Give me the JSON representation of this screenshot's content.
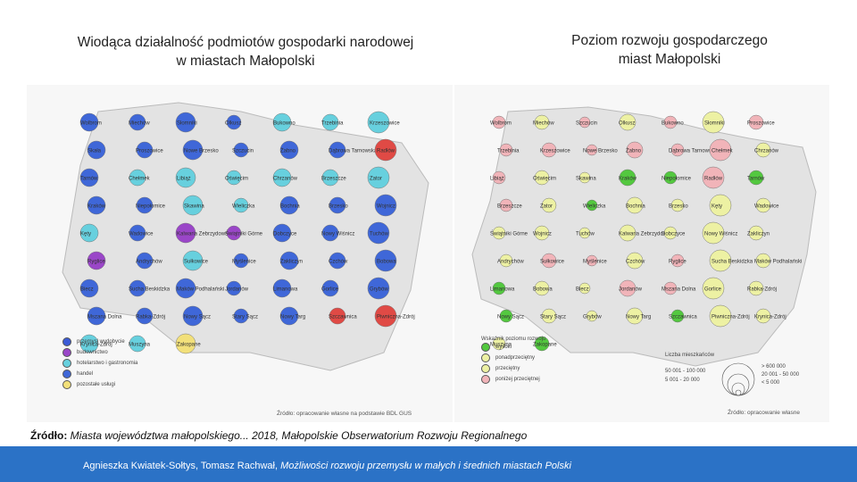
{
  "left_title": "Wiodąca działalność podmiotów gospodarki narodowej\nw miastach Małopolski",
  "right_title": "Poziom rozwoju gospodarczego\nmiast Małopolski",
  "colors": {
    "industry": "#3b5bd6",
    "construction": "#9a46c8",
    "hotel": "#67d0de",
    "trade": "#3f67d8",
    "services": "#f2e07a",
    "red": "#e04a45",
    "green": "#53c83f",
    "yellow": "#edf1a3",
    "pink": "#f1b4b9"
  },
  "left_map": {
    "legend": [
      "przemysł wydobycie",
      "budownictwo",
      "hotelarstwo i gastronomia",
      "handel",
      "pozostałe usługi"
    ],
    "source": "Źródło: opracowanie własne na podstawie BDL GUS",
    "cities": [
      {
        "name": "Wolbrom",
        "c": "trade"
      },
      {
        "name": "Miechów",
        "c": "trade"
      },
      {
        "name": "Słomniki",
        "c": "trade"
      },
      {
        "name": "Olkusz",
        "c": "trade"
      },
      {
        "name": "Bukowno",
        "c": "hotel"
      },
      {
        "name": "Trzebinia",
        "c": "hotel"
      },
      {
        "name": "Krzeszowice",
        "c": "hotel"
      },
      {
        "name": "Skała",
        "c": "trade"
      },
      {
        "name": "Proszowice",
        "c": "trade"
      },
      {
        "name": "Nowe Brzesko",
        "c": "trade"
      },
      {
        "name": "Szczucin",
        "c": "trade"
      },
      {
        "name": "Żabno",
        "c": "trade"
      },
      {
        "name": "Dąbrowa Tarnowska",
        "c": "trade"
      },
      {
        "name": "Radłów",
        "c": "red"
      },
      {
        "name": "Tarnów",
        "c": "trade"
      },
      {
        "name": "Chełmek",
        "c": "hotel"
      },
      {
        "name": "Libiąż",
        "c": "hotel"
      },
      {
        "name": "Oświęcim",
        "c": "hotel"
      },
      {
        "name": "Chrzanów",
        "c": "hotel"
      },
      {
        "name": "Brzeszcze",
        "c": "hotel"
      },
      {
        "name": "Zator",
        "c": "hotel"
      },
      {
        "name": "Kraków",
        "c": "trade"
      },
      {
        "name": "Niepołomice",
        "c": "trade"
      },
      {
        "name": "Skawina",
        "c": "hotel"
      },
      {
        "name": "Wieliczka",
        "c": "hotel"
      },
      {
        "name": "Bochnia",
        "c": "trade"
      },
      {
        "name": "Brzesko",
        "c": "trade"
      },
      {
        "name": "Wojnicz",
        "c": "trade"
      },
      {
        "name": "Kęty",
        "c": "hotel"
      },
      {
        "name": "Wadowice",
        "c": "trade"
      },
      {
        "name": "Kalwaria Zebrzydowska",
        "c": "construction"
      },
      {
        "name": "Świątniki Górne",
        "c": "construction"
      },
      {
        "name": "Dobczyce",
        "c": "trade"
      },
      {
        "name": "Nowy Wiśnicz",
        "c": "trade"
      },
      {
        "name": "Tuchów",
        "c": "trade"
      },
      {
        "name": "Ryglice",
        "c": "construction"
      },
      {
        "name": "Andrychów",
        "c": "trade"
      },
      {
        "name": "Sułkowice",
        "c": "hotel"
      },
      {
        "name": "Myślenice",
        "c": "trade"
      },
      {
        "name": "Zakliczyn",
        "c": "trade"
      },
      {
        "name": "Czchów",
        "c": "trade"
      },
      {
        "name": "Bobowa",
        "c": "trade"
      },
      {
        "name": "Biecz",
        "c": "trade"
      },
      {
        "name": "Sucha Beskidzka",
        "c": "trade"
      },
      {
        "name": "Maków Podhalański",
        "c": "trade"
      },
      {
        "name": "Jordanów",
        "c": "trade"
      },
      {
        "name": "Limanowa",
        "c": "trade"
      },
      {
        "name": "Gorlice",
        "c": "trade"
      },
      {
        "name": "Grybów",
        "c": "trade"
      },
      {
        "name": "Mszana Dolna",
        "c": "trade"
      },
      {
        "name": "Rabka-Zdrój",
        "c": "trade"
      },
      {
        "name": "Nowy Sącz",
        "c": "trade"
      },
      {
        "name": "Stary Sącz",
        "c": "trade"
      },
      {
        "name": "Nowy Targ",
        "c": "trade"
      },
      {
        "name": "Szczawnica",
        "c": "red"
      },
      {
        "name": "Piwniczna-Zdrój",
        "c": "red"
      },
      {
        "name": "Krynica-Zdrój",
        "c": "hotel"
      },
      {
        "name": "Muszyna",
        "c": "hotel"
      },
      {
        "name": "Zakopane",
        "c": "services"
      }
    ]
  },
  "right_map": {
    "legend_title": "Wskaźnik poziomu rozwoju",
    "legend": [
      "wysoki",
      "ponadprzeciętny",
      "przeciętny",
      "poniżej przeciętnej"
    ],
    "size_title": "Liczba mieszkańców",
    "sizes_left": [
      "50 001 - 100 000",
      "5 001 - 20 000"
    ],
    "sizes_right": [
      "> 600 000",
      "20 001 - 50 000",
      "< 5 000"
    ],
    "source": "Źródło: opracowanie własne",
    "cities": [
      {
        "name": "Wolbrom",
        "c": "pink"
      },
      {
        "name": "Miechów",
        "c": "yellow"
      },
      {
        "name": "Szczucin",
        "c": "pink"
      },
      {
        "name": "Olkusz",
        "c": "yellow"
      },
      {
        "name": "Bukowno",
        "c": "pink"
      },
      {
        "name": "Słomniki",
        "c": "yellow"
      },
      {
        "name": "Proszowice",
        "c": "pink"
      },
      {
        "name": "Trzebinia",
        "c": "pink"
      },
      {
        "name": "Krzeszowice",
        "c": "pink"
      },
      {
        "name": "Nowe Brzesko",
        "c": "pink"
      },
      {
        "name": "Żabno",
        "c": "pink"
      },
      {
        "name": "Dąbrowa Tarnowska",
        "c": "pink"
      },
      {
        "name": "Chełmek",
        "c": "pink"
      },
      {
        "name": "Chrzanów",
        "c": "yellow"
      },
      {
        "name": "Libiąż",
        "c": "pink"
      },
      {
        "name": "Oświęcim",
        "c": "yellow"
      },
      {
        "name": "Skawina",
        "c": "yellow"
      },
      {
        "name": "Kraków",
        "c": "green"
      },
      {
        "name": "Niepołomice",
        "c": "green"
      },
      {
        "name": "Radłów",
        "c": "pink"
      },
      {
        "name": "Tarnów",
        "c": "green"
      },
      {
        "name": "Brzeszcze",
        "c": "pink"
      },
      {
        "name": "Zator",
        "c": "yellow"
      },
      {
        "name": "Wieliczka",
        "c": "green"
      },
      {
        "name": "Bochnia",
        "c": "yellow"
      },
      {
        "name": "Brzesko",
        "c": "yellow"
      },
      {
        "name": "Kęty",
        "c": "yellow"
      },
      {
        "name": "Wadowice",
        "c": "yellow"
      },
      {
        "name": "Świątniki Górne",
        "c": "yellow"
      },
      {
        "name": "Wojnicz",
        "c": "yellow"
      },
      {
        "name": "Tuchów",
        "c": "yellow"
      },
      {
        "name": "Kalwaria Zebrzydowska",
        "c": "yellow"
      },
      {
        "name": "Dobczyce",
        "c": "yellow"
      },
      {
        "name": "Nowy Wiśnicz",
        "c": "yellow"
      },
      {
        "name": "Zakliczyn",
        "c": "yellow"
      },
      {
        "name": "Andrychów",
        "c": "yellow"
      },
      {
        "name": "Sułkowice",
        "c": "pink"
      },
      {
        "name": "Myślenice",
        "c": "pink"
      },
      {
        "name": "Czchów",
        "c": "yellow"
      },
      {
        "name": "Ryglice",
        "c": "pink"
      },
      {
        "name": "Sucha Beskidzka",
        "c": "yellow"
      },
      {
        "name": "Maków Podhalański",
        "c": "yellow"
      },
      {
        "name": "Limanowa",
        "c": "green"
      },
      {
        "name": "Bobowa",
        "c": "yellow"
      },
      {
        "name": "Biecz",
        "c": "yellow"
      },
      {
        "name": "Jordanów",
        "c": "pink"
      },
      {
        "name": "Mszana Dolna",
        "c": "pink"
      },
      {
        "name": "Gorlice",
        "c": "yellow"
      },
      {
        "name": "Rabka-Zdrój",
        "c": "yellow"
      },
      {
        "name": "Nowy Sącz",
        "c": "green"
      },
      {
        "name": "Stary Sącz",
        "c": "yellow"
      },
      {
        "name": "Grybów",
        "c": "yellow"
      },
      {
        "name": "Nowy Targ",
        "c": "yellow"
      },
      {
        "name": "Szczawnica",
        "c": "green"
      },
      {
        "name": "Piwniczna-Zdrój",
        "c": "yellow"
      },
      {
        "name": "Krynica-Zdrój",
        "c": "yellow"
      },
      {
        "name": "Muszyna",
        "c": "yellow"
      },
      {
        "name": "Zakopane",
        "c": "green"
      }
    ]
  },
  "citation": {
    "label": "Źródło:",
    "text": " Miasta województwa małopolskiego... 2018, Małopolskie Obserwatorium Rozwoju Regionalnego"
  },
  "footer": {
    "authors": "Agnieszka Kwiatek-Sołtys, Tomasz Rachwał, ",
    "title": "Możliwości rozwoju przemysłu w małych i średnich miastach Polski"
  }
}
